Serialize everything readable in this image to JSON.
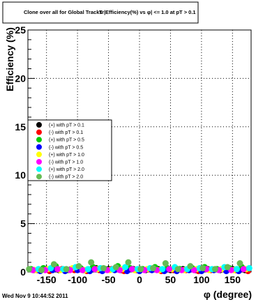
{
  "chart_data": {
    "type": "scatter",
    "title": "Clone  over all for Global Tracks",
    "title_overlap": "Tr|Efficiency(%) vs φ| <= 1.0 at pT > 0.1",
    "xlabel": "φ (degree)",
    "ylabel": "Efficiency (%)",
    "xlim": [
      -180,
      180
    ],
    "ylim": [
      0,
      25
    ],
    "x_ticks": [
      -150,
      -100,
      -50,
      0,
      50,
      100,
      150
    ],
    "y_ticks": [
      0,
      5,
      10,
      15,
      20,
      25
    ],
    "grid": true,
    "legend_position": "left-middle",
    "series": [
      {
        "name": "(+) with pT > 0.1",
        "color": "#000000",
        "x": [
          -170,
          -150,
          -130,
          -110,
          -90,
          -70,
          -50,
          -30,
          -10,
          10,
          30,
          50,
          70,
          90,
          110,
          130,
          150,
          170
        ],
        "y": [
          0.2,
          0.3,
          0.2,
          0.3,
          0.2,
          0.4,
          0.3,
          0.2,
          0.3,
          0.2,
          0.3,
          0.2,
          0.3,
          0.2,
          0.3,
          0.2,
          0.3,
          0.2
        ]
      },
      {
        "name": "(-) with pT > 0.1",
        "color": "#ff0000",
        "x": [
          -165,
          -145,
          -125,
          -105,
          -85,
          -65,
          -45,
          -25,
          -5,
          15,
          35,
          55,
          75,
          95,
          115,
          135,
          155,
          175
        ],
        "y": [
          0.2,
          0.1,
          0.3,
          0.2,
          0.1,
          0.2,
          0.3,
          0.1,
          0.2,
          0.3,
          0.1,
          0.2,
          0.2,
          0.1,
          0.2,
          0.3,
          0.2,
          0.1
        ]
      },
      {
        "name": "(+) with pT > 0.5",
        "color": "#00cc00",
        "x": [
          -175,
          -155,
          -135,
          -115,
          -95,
          -75,
          -55,
          -35,
          -15,
          5,
          25,
          45,
          65,
          85,
          105,
          125,
          145,
          165
        ],
        "y": [
          0.3,
          0.4,
          0.6,
          0.2,
          0.4,
          0.5,
          0.3,
          0.6,
          0.4,
          0.3,
          0.5,
          0.4,
          0.3,
          0.4,
          0.5,
          0.3,
          0.4,
          0.5
        ]
      },
      {
        "name": "(-) with pT > 0.5",
        "color": "#0000ff",
        "x": [
          -160,
          -140,
          -120,
          -100,
          -80,
          -60,
          -40,
          -20,
          0,
          20,
          40,
          60,
          80,
          100,
          120,
          140,
          160
        ],
        "y": [
          0.1,
          0.2,
          0.1,
          0.2,
          0.1,
          0.1,
          0.2,
          0.1,
          0.1,
          0.2,
          0.1,
          0.1,
          0.2,
          0.1,
          0.2,
          0.1,
          0.1
        ]
      },
      {
        "name": "(+) with pT > 1.0",
        "color": "#ffff00",
        "x": [
          -168,
          -148,
          -128,
          -108,
          -88,
          -68,
          -48,
          -28,
          -8,
          12,
          32,
          52,
          72,
          92,
          112,
          132,
          152,
          172
        ],
        "y": [
          0.2,
          0.3,
          0.2,
          0.4,
          0.2,
          0.3,
          0.2,
          0.3,
          0.2,
          0.3,
          0.2,
          0.3,
          0.2,
          0.3,
          0.2,
          0.3,
          0.2,
          0.3
        ]
      },
      {
        "name": "(-) with pT > 1.0",
        "color": "#ff00ff",
        "x": [
          -172,
          -152,
          -132,
          -112,
          -92,
          -72,
          -52,
          -32,
          -12,
          8,
          28,
          48,
          68,
          88,
          108,
          128,
          148,
          168
        ],
        "y": [
          0.2,
          0.2,
          0.3,
          0.2,
          0.2,
          0.3,
          0.2,
          0.2,
          0.3,
          0.2,
          0.2,
          0.3,
          0.2,
          0.2,
          0.3,
          0.2,
          0.2,
          0.3
        ]
      },
      {
        "name": "(+) with pT > 2.0",
        "color": "#00ffff",
        "x": [
          -163,
          -143,
          -123,
          -103,
          -83,
          -63,
          -43,
          -23,
          -3,
          17,
          37,
          57,
          77,
          97,
          117,
          137,
          157,
          177
        ],
        "y": [
          0.3,
          0.4,
          0.3,
          0.5,
          0.3,
          0.4,
          0.3,
          0.5,
          0.3,
          0.4,
          0.3,
          0.5,
          0.3,
          0.4,
          0.3,
          0.5,
          0.3,
          0.4
        ]
      },
      {
        "name": "(-) with pT > 2.0",
        "color": "#66bb55",
        "x": [
          -178,
          -158,
          -138,
          -118,
          -98,
          -78,
          -58,
          -38,
          -18,
          2,
          22,
          42,
          62,
          82,
          102,
          122,
          142,
          162
        ],
        "y": [
          0.3,
          0.2,
          0.8,
          0.3,
          0.6,
          1.0,
          0.4,
          0.5,
          1.0,
          0.3,
          0.4,
          0.9,
          0.3,
          0.6,
          0.4,
          0.3,
          0.5,
          0.9
        ]
      }
    ]
  },
  "footer": {
    "timestamp": "Wed Nov  9 10:44:52 2011"
  }
}
